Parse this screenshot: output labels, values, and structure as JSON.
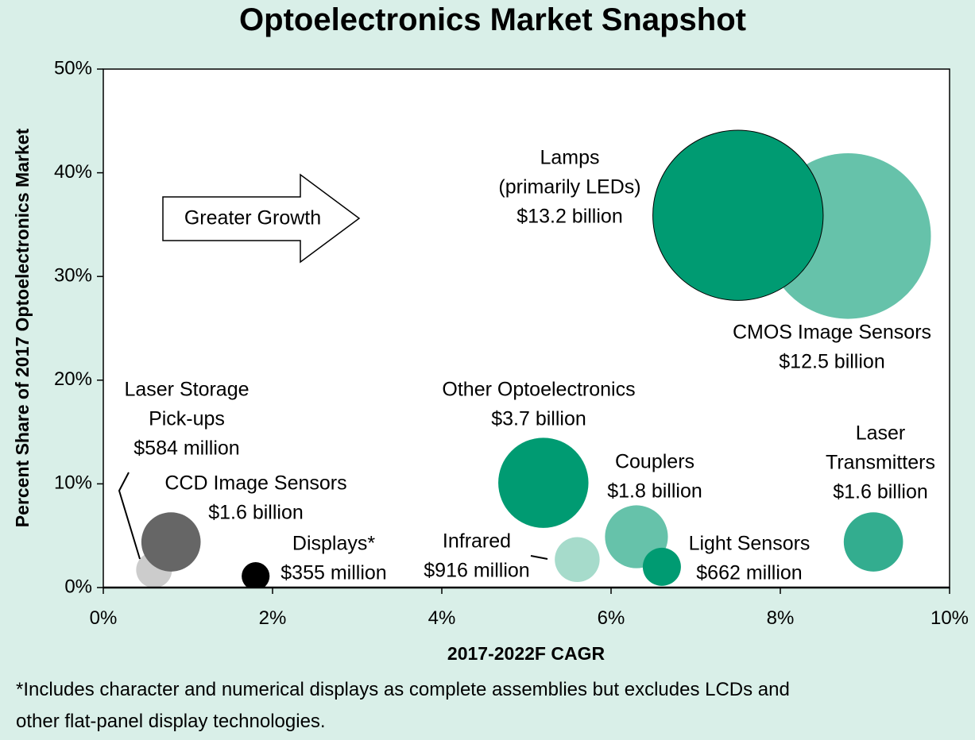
{
  "chart_data": {
    "type": "scatter",
    "subtype": "bubble",
    "title": "Optoelectronics Market Snapshot",
    "xlabel": "2017-2022F CAGR",
    "ylabel": "Percent Share of 2017 Optoelectronics Market",
    "xlim": [
      0,
      10
    ],
    "ylim": [
      0,
      50
    ],
    "x_ticks": [
      "0%",
      "2%",
      "4%",
      "6%",
      "8%",
      "10%"
    ],
    "y_ticks": [
      "0%",
      "10%",
      "20%",
      "30%",
      "40%",
      "50%"
    ],
    "grid": false,
    "legend": "none",
    "annotation_arrow": "Greater Growth",
    "footnote": [
      "*Includes character and numerical displays as complete assemblies but excludes LCDs and",
      "other flat-panel display technologies."
    ],
    "bubble_size_unit": "billion USD",
    "points": [
      {
        "label": [
          "Lamps",
          "(primarily LEDs)",
          "$13.2 billion"
        ],
        "x": 7.5,
        "y": 35.9,
        "size": 13.2,
        "color": "#009B72",
        "outline": true
      },
      {
        "label": [
          "CMOS Image Sensors",
          "$12.5  billion"
        ],
        "x": 8.8,
        "y": 33.9,
        "size": 12.5,
        "color": "#66C2AA"
      },
      {
        "label": [
          "Other Optoelectronics",
          "$3.7 billion"
        ],
        "x": 5.2,
        "y": 10.1,
        "size": 3.7,
        "color": "#009B72"
      },
      {
        "label": [
          "Couplers",
          "$1.8 billion"
        ],
        "x": 6.3,
        "y": 4.9,
        "size": 1.8,
        "color": "#66C2AA"
      },
      {
        "label": [
          "Laser",
          "Transmitters",
          "$1.6 billion"
        ],
        "x": 9.1,
        "y": 4.4,
        "size": 1.6,
        "color": "#33AD8F"
      },
      {
        "label": [
          "Infrared",
          "$916 million"
        ],
        "x": 5.6,
        "y": 2.7,
        "size": 0.916,
        "color": "#A6DBCB"
      },
      {
        "label": [
          "Light Sensors",
          "$662 million"
        ],
        "x": 6.6,
        "y": 2.0,
        "size": 0.662,
        "color": "#009B72"
      },
      {
        "label": [
          "CCD Image Sensors",
          "$1.6 billion"
        ],
        "x": 0.8,
        "y": 4.4,
        "size": 1.6,
        "color": "#666666"
      },
      {
        "label": [
          "Laser Storage",
          "Pick-ups",
          "$584 million"
        ],
        "x": 0.6,
        "y": 1.7,
        "size": 0.584,
        "color": "#CCCCCC"
      },
      {
        "label": [
          "Displays*",
          "$355 million"
        ],
        "x": 1.8,
        "y": 1.1,
        "size": 0.355,
        "color": "#000000"
      }
    ]
  },
  "colors": {
    "background": "#D9EFE8",
    "plot_background": "#FFFFFF"
  }
}
